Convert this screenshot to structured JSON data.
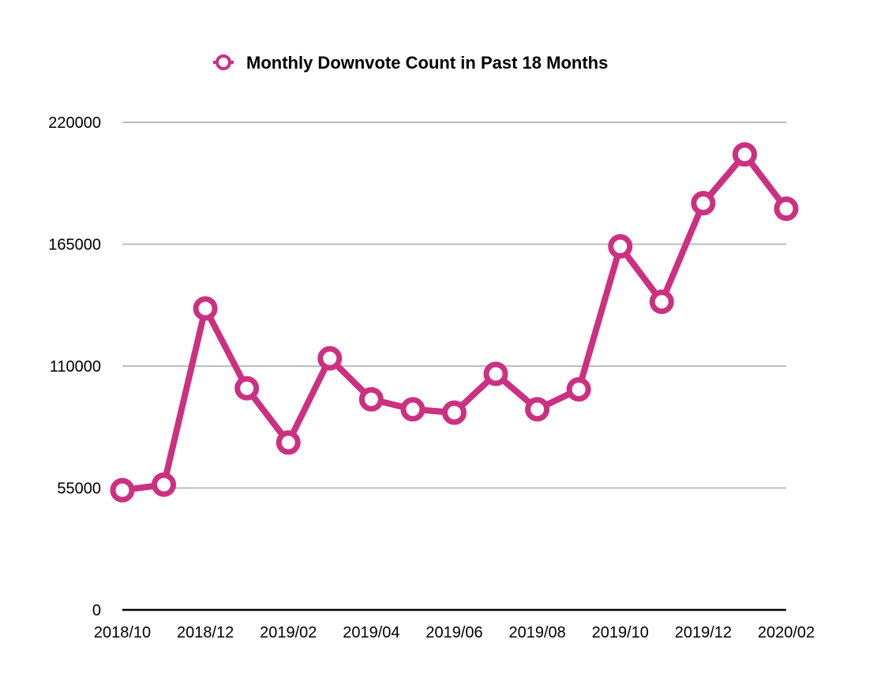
{
  "chart_data": {
    "type": "line",
    "title": "",
    "xlabel": "",
    "ylabel": "",
    "x": [
      "2018/10",
      "2018/11",
      "2018/12",
      "2019/01",
      "2019/02",
      "2019/03",
      "2019/04",
      "2019/05",
      "2019/06",
      "2019/07",
      "2019/08",
      "2019/09",
      "2019/10",
      "2019/11",
      "2019/12",
      "2020/01",
      "2020/02"
    ],
    "x_tick_labels": [
      "2018/10",
      "2018/12",
      "2019/02",
      "2019/04",
      "2019/06",
      "2019/08",
      "2019/10",
      "2019/12",
      "2020/02"
    ],
    "y_ticks": [
      "0",
      "55000",
      "110000",
      "165000",
      "220000"
    ],
    "ylim": [
      0,
      220000
    ],
    "grid": true,
    "legend": "top-center",
    "series": [
      {
        "name": "Monthly Downvote Count in Past 18 Months",
        "color": "#cc3080",
        "values": [
          54000,
          56500,
          136000,
          100000,
          75500,
          113500,
          95000,
          90500,
          89000,
          106500,
          90500,
          99500,
          164000,
          139000,
          183500,
          205500,
          181000
        ]
      }
    ]
  }
}
